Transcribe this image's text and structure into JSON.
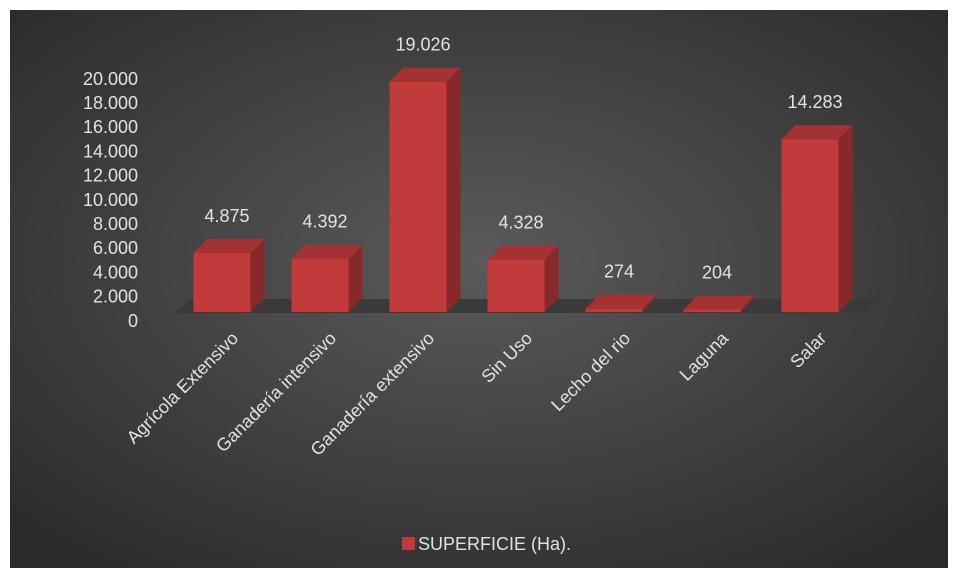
{
  "chart_data": {
    "type": "bar3d",
    "categories": [
      "Agrícola Extensivo",
      "Ganadería intensivo",
      "Ganadería extensivo",
      "Sin Uso",
      "Lecho del rio",
      "Laguna",
      "Salar"
    ],
    "series": [
      {
        "name": "SUPERFICIE (Ha).",
        "color": "#c23b3b",
        "values": [
          4875,
          4392,
          19026,
          4328,
          274,
          204,
          14283
        ],
        "value_labels": [
          "4.875",
          "4.392",
          "19.026",
          "4.328",
          "274",
          "204",
          "14.283"
        ]
      }
    ],
    "ylim": [
      0,
      20000
    ],
    "yticks": [
      0,
      {
        "value": 2000,
        "label": "2.000"
      },
      {
        "value": 4000,
        "label": "4.000"
      },
      {
        "value": 6000,
        "label": "6.000"
      },
      {
        "value": 8000,
        "label": "8.000"
      },
      {
        "value": 10000,
        "label": "10.000"
      },
      {
        "value": 12000,
        "label": "12.000"
      },
      {
        "value": 14000,
        "label": "14.000"
      },
      {
        "value": 16000,
        "label": "16.000"
      },
      {
        "value": 18000,
        "label": "18.000"
      },
      {
        "value": 20000,
        "label": "20.000"
      }
    ],
    "grid": false,
    "legend": "bottom"
  }
}
